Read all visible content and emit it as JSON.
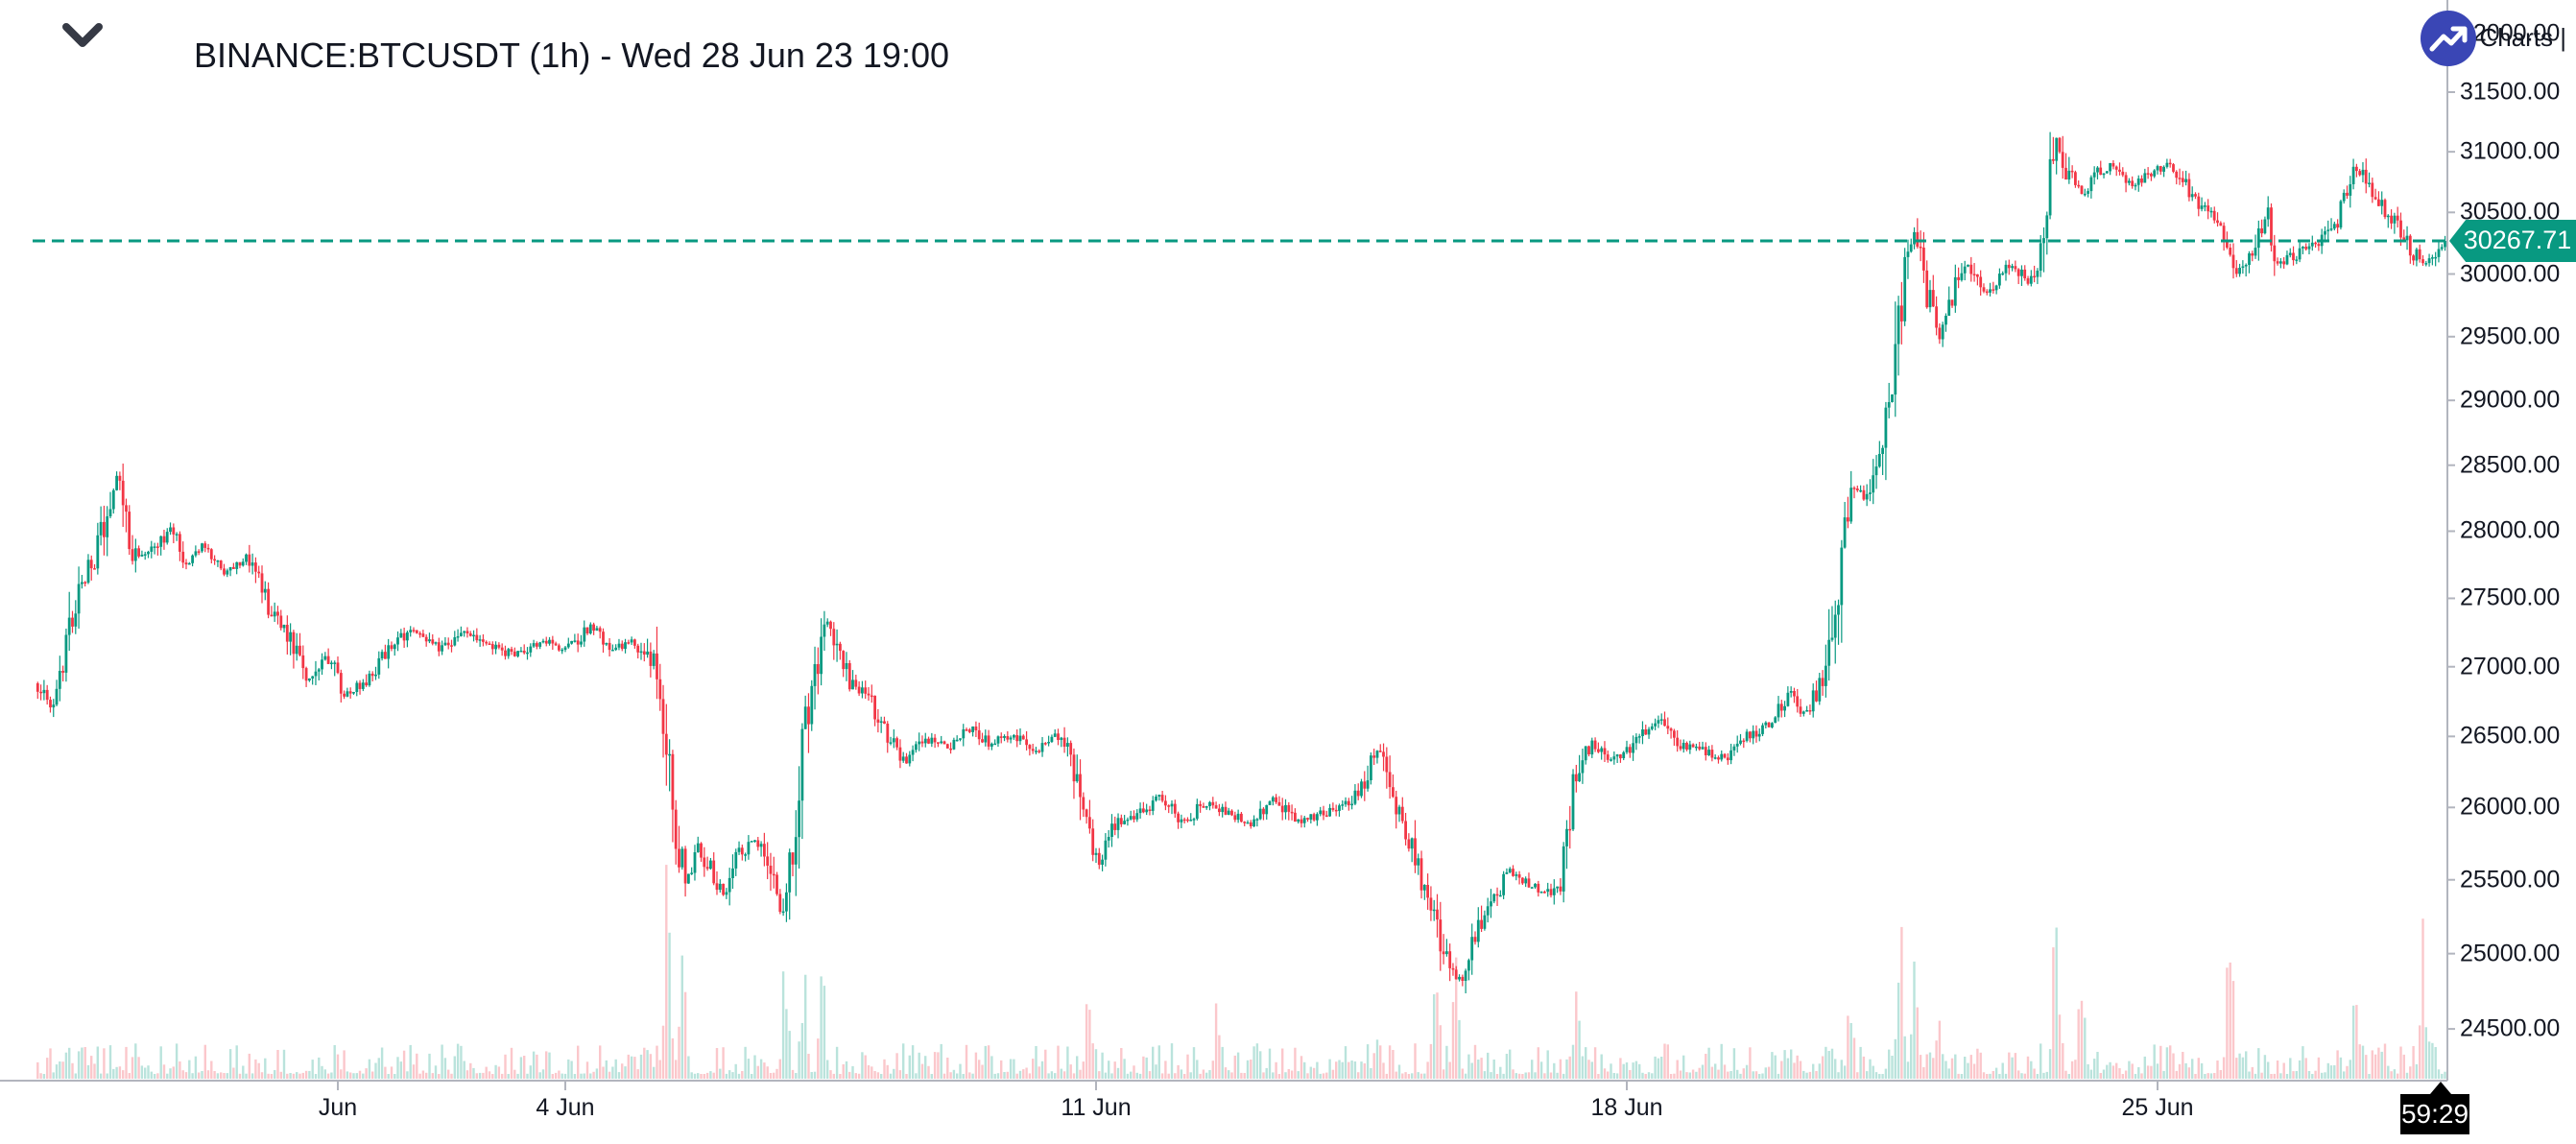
{
  "header": {
    "symbol_title": "BINANCE:BTCUSDT (1h) - Wed 28 Jun 23 19:00"
  },
  "attribution": {
    "label": "Charts |"
  },
  "price_scale": {
    "labels": [
      "32000.00",
      "31500.00",
      "31000.00",
      "30500.00",
      "30000.00",
      "29500.00",
      "29000.00",
      "28500.00",
      "28000.00",
      "27500.00",
      "27000.00",
      "26500.00",
      "26000.00",
      "25500.00",
      "25000.00",
      "24500.00"
    ],
    "current_price_label": "30267.71"
  },
  "time_scale": {
    "labels": [
      {
        "label": "Jun",
        "day": 0
      },
      {
        "label": "4 Jun",
        "day": 3
      },
      {
        "label": "11 Jun",
        "day": 10
      },
      {
        "label": "18 Jun",
        "day": 17
      },
      {
        "label": "25 Jun",
        "day": 24
      }
    ]
  },
  "countdown": {
    "label": "59:29"
  },
  "colors": {
    "up": "#089981",
    "down": "#F23645",
    "volume_up": "rgba(8,153,129,0.28)",
    "volume_down": "rgba(242,54,69,0.28)",
    "price_line": "#089981",
    "price_tag_bg": "#089981",
    "axis_line": "#B2B5BE",
    "text": "#131722",
    "countdown_bg": "#000000",
    "logo_bg": "#3A46B5",
    "chevron": "#363A45"
  },
  "chart_data": {
    "type": "candlestick",
    "symbol": "BINANCE:BTCUSDT",
    "interval": "1h",
    "title": "BINANCE:BTCUSDT (1h) - Wed 28 Jun 23 19:00",
    "last_price": 30267.71,
    "price_line_value": 30267.71,
    "y_axis": {
      "scale": "log",
      "tick_step": 500,
      "ticks": [
        32000,
        31500,
        31000,
        30500,
        30000,
        29500,
        29000,
        28500,
        28000,
        27500,
        27000,
        26500,
        26000,
        25500,
        25000,
        24500
      ],
      "visible_range": [
        24300,
        32150
      ]
    },
    "x_axis": {
      "start_day_offset_from_jun1": -4.0,
      "end_day_offset_from_jun1": 27.79,
      "tick_labels": [
        "Jun",
        "4 Jun",
        "11 Jun",
        "18 Jun",
        "25 Jun"
      ],
      "tick_days": [
        0,
        3,
        10,
        17,
        24
      ]
    },
    "price_path_keypoints": [
      [
        -4.0,
        26880
      ],
      [
        -3.75,
        26700
      ],
      [
        -3.45,
        27480
      ],
      [
        -3.15,
        27900
      ],
      [
        -2.9,
        28430
      ],
      [
        -2.7,
        27800
      ],
      [
        -2.45,
        27850
      ],
      [
        -2.2,
        28040
      ],
      [
        -2.0,
        27760
      ],
      [
        -1.75,
        27900
      ],
      [
        -1.5,
        27700
      ],
      [
        -1.2,
        27800
      ],
      [
        -0.9,
        27420
      ],
      [
        -0.65,
        27230
      ],
      [
        -0.4,
        26880
      ],
      [
        -0.15,
        27080
      ],
      [
        0.1,
        26780
      ],
      [
        0.4,
        26920
      ],
      [
        0.7,
        27150
      ],
      [
        1.0,
        27280
      ],
      [
        1.35,
        27130
      ],
      [
        1.7,
        27250
      ],
      [
        2.0,
        27150
      ],
      [
        2.35,
        27080
      ],
      [
        2.7,
        27200
      ],
      [
        3.0,
        27120
      ],
      [
        3.35,
        27300
      ],
      [
        3.6,
        27120
      ],
      [
        3.9,
        27180
      ],
      [
        4.15,
        27020
      ],
      [
        4.3,
        26500
      ],
      [
        4.45,
        25900
      ],
      [
        4.6,
        25480
      ],
      [
        4.75,
        25720
      ],
      [
        4.95,
        25540
      ],
      [
        5.1,
        25400
      ],
      [
        5.3,
        25680
      ],
      [
        5.5,
        25800
      ],
      [
        5.7,
        25560
      ],
      [
        5.85,
        25280
      ],
      [
        5.95,
        25600
      ],
      [
        6.1,
        26300
      ],
      [
        6.3,
        26980
      ],
      [
        6.45,
        27350
      ],
      [
        6.6,
        27150
      ],
      [
        6.75,
        26880
      ],
      [
        7.0,
        26800
      ],
      [
        7.25,
        26500
      ],
      [
        7.5,
        26320
      ],
      [
        7.75,
        26480
      ],
      [
        8.05,
        26420
      ],
      [
        8.35,
        26560
      ],
      [
        8.6,
        26440
      ],
      [
        8.9,
        26520
      ],
      [
        9.2,
        26380
      ],
      [
        9.45,
        26500
      ],
      [
        9.65,
        26400
      ],
      [
        9.85,
        25900
      ],
      [
        10.05,
        25620
      ],
      [
        10.25,
        25880
      ],
      [
        10.55,
        25950
      ],
      [
        10.85,
        26080
      ],
      [
        11.15,
        25900
      ],
      [
        11.45,
        26030
      ],
      [
        11.75,
        25950
      ],
      [
        12.05,
        25890
      ],
      [
        12.35,
        26060
      ],
      [
        12.65,
        25900
      ],
      [
        12.95,
        25950
      ],
      [
        13.25,
        26000
      ],
      [
        13.5,
        26150
      ],
      [
        13.7,
        26420
      ],
      [
        13.85,
        26200
      ],
      [
        14.0,
        25950
      ],
      [
        14.2,
        25700
      ],
      [
        14.45,
        25250
      ],
      [
        14.65,
        24900
      ],
      [
        14.8,
        24820
      ],
      [
        15.0,
        25100
      ],
      [
        15.2,
        25350
      ],
      [
        15.45,
        25550
      ],
      [
        15.7,
        25480
      ],
      [
        15.95,
        25400
      ],
      [
        16.15,
        25550
      ],
      [
        16.35,
        26300
      ],
      [
        16.55,
        26450
      ],
      [
        16.8,
        26320
      ],
      [
        17.1,
        26450
      ],
      [
        17.4,
        26620
      ],
      [
        17.7,
        26450
      ],
      [
        18.0,
        26400
      ],
      [
        18.3,
        26350
      ],
      [
        18.6,
        26500
      ],
      [
        18.9,
        26580
      ],
      [
        19.15,
        26820
      ],
      [
        19.35,
        26650
      ],
      [
        19.6,
        26900
      ],
      [
        19.75,
        27450
      ],
      [
        19.95,
        28380
      ],
      [
        20.15,
        28250
      ],
      [
        20.35,
        28600
      ],
      [
        20.55,
        29350
      ],
      [
        20.67,
        30150
      ],
      [
        20.8,
        30300
      ],
      [
        20.95,
        29900
      ],
      [
        21.12,
        29480
      ],
      [
        21.3,
        29850
      ],
      [
        21.5,
        30080
      ],
      [
        21.7,
        29850
      ],
      [
        21.9,
        29950
      ],
      [
        22.1,
        30100
      ],
      [
        22.3,
        29900
      ],
      [
        22.5,
        30150
      ],
      [
        22.65,
        31150
      ],
      [
        22.78,
        30880
      ],
      [
        23.0,
        30650
      ],
      [
        23.2,
        30820
      ],
      [
        23.45,
        30900
      ],
      [
        23.65,
        30720
      ],
      [
        23.9,
        30820
      ],
      [
        24.16,
        30900
      ],
      [
        24.4,
        30700
      ],
      [
        24.65,
        30500
      ],
      [
        24.9,
        30350
      ],
      [
        25.04,
        30020
      ],
      [
        25.25,
        30220
      ],
      [
        25.45,
        30500
      ],
      [
        25.6,
        30050
      ],
      [
        25.8,
        30150
      ],
      [
        26.1,
        30250
      ],
      [
        26.35,
        30420
      ],
      [
        26.62,
        30880
      ],
      [
        26.8,
        30700
      ],
      [
        27.0,
        30520
      ],
      [
        27.2,
        30350
      ],
      [
        27.48,
        30080
      ],
      [
        27.65,
        30150
      ],
      [
        27.79,
        30267.71
      ]
    ],
    "volume_spikes": [
      [
        4.35,
        235
      ],
      [
        4.55,
        145
      ],
      [
        5.9,
        115
      ],
      [
        6.15,
        150
      ],
      [
        6.4,
        105
      ],
      [
        9.9,
        100
      ],
      [
        11.6,
        60
      ],
      [
        13.7,
        70
      ],
      [
        14.5,
        110
      ],
      [
        14.75,
        150
      ],
      [
        16.35,
        125
      ],
      [
        19.95,
        85
      ],
      [
        20.6,
        195
      ],
      [
        20.8,
        145
      ],
      [
        21.12,
        90
      ],
      [
        22.65,
        175
      ],
      [
        23.0,
        115
      ],
      [
        24.95,
        205
      ],
      [
        26.6,
        105
      ],
      [
        27.5,
        195
      ]
    ]
  }
}
